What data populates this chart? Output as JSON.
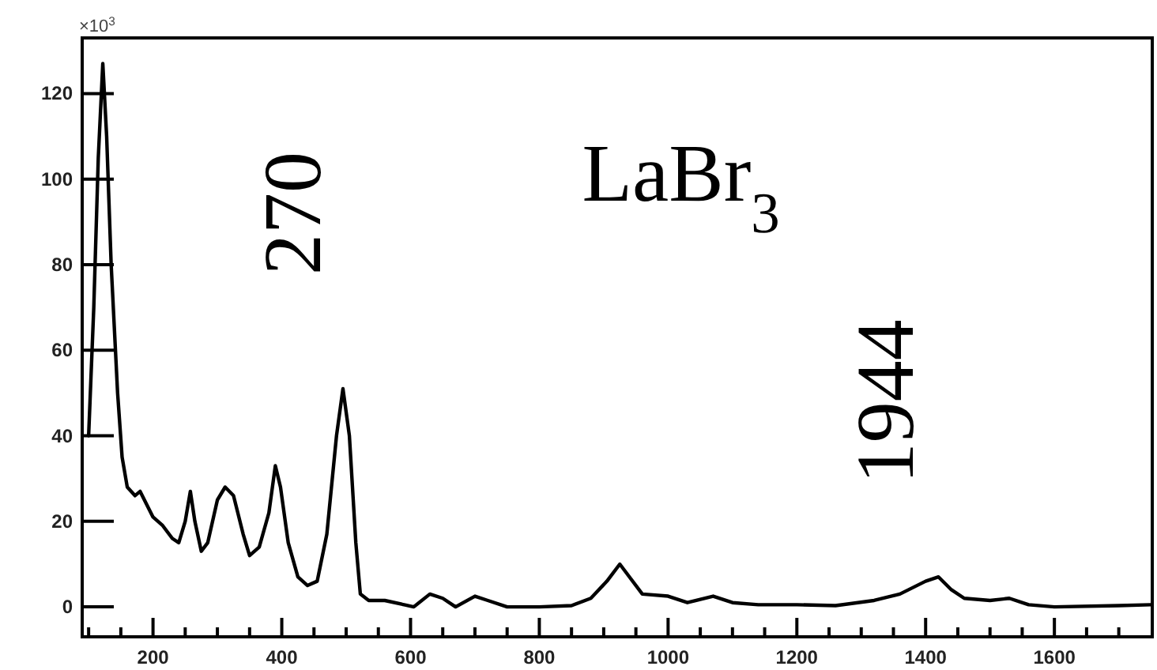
{
  "chart_data": {
    "type": "line",
    "title": "LaBr$_{3}$",
    "ylabel": "×10$^{3}$",
    "annotations": [
      "270",
      "1944"
    ],
    "x": [
      100,
      108,
      115,
      122,
      128,
      135,
      145,
      152,
      160,
      172,
      180,
      190,
      200,
      215,
      230,
      240,
      250,
      258,
      265,
      275,
      285,
      300,
      312,
      325,
      340,
      350,
      365,
      380,
      390,
      398,
      410,
      425,
      440,
      455,
      470,
      485,
      495,
      505,
      515,
      522,
      535,
      560,
      590,
      605,
      630,
      650,
      670,
      700,
      720,
      750,
      800,
      850,
      880,
      905,
      925,
      940,
      960,
      1000,
      1030,
      1070,
      1100,
      1140,
      1200,
      1260,
      1320,
      1360,
      1400,
      1420,
      1440,
      1460,
      1500,
      1530,
      1560,
      1600,
      1700,
      1750
    ],
    "series": [
      {
        "color": "#000000",
        "values": [
          40,
          70,
          105,
          127,
          110,
          80,
          50,
          35,
          28,
          26,
          27,
          24,
          21,
          19,
          16,
          15,
          20,
          27,
          20,
          13,
          15,
          25,
          28,
          26,
          17,
          12,
          14,
          22,
          33,
          28,
          15,
          7,
          5,
          6,
          17,
          40,
          51,
          40,
          15,
          3,
          1.5,
          1.5,
          0.5,
          0,
          3,
          2,
          0,
          2.5,
          1.5,
          0,
          0,
          0.3,
          2,
          6,
          10,
          7,
          3,
          2.5,
          1,
          2.5,
          1,
          0.5,
          0.5,
          0.3,
          1.5,
          3,
          6,
          7,
          4,
          2,
          1.5,
          2,
          0.5,
          0,
          0.3,
          0.5
        ]
      }
    ],
    "xlim": [
      90,
      1752
    ],
    "ylim": [
      -7,
      133
    ],
    "xticks": [
      {
        "value": 100,
        "label": null
      },
      {
        "value": 150,
        "label": null
      },
      200,
      {
        "value": 250,
        "label": null
      },
      {
        "value": 300,
        "label": null
      },
      {
        "value": 350,
        "label": null
      },
      400,
      {
        "value": 450,
        "label": null
      },
      {
        "value": 500,
        "label": null
      },
      {
        "value": 550,
        "label": null
      },
      600,
      {
        "value": 650,
        "label": null
      },
      {
        "value": 700,
        "label": null
      },
      {
        "value": 750,
        "label": null
      },
      800,
      {
        "value": 850,
        "label": null
      },
      {
        "value": 900,
        "label": null
      },
      {
        "value": 950,
        "label": null
      },
      1000,
      {
        "value": 1050,
        "label": null
      },
      {
        "value": 1100,
        "label": null
      },
      {
        "value": 1150,
        "label": null
      },
      1200,
      {
        "value": 1250,
        "label": null
      },
      {
        "value": 1300,
        "label": null
      },
      {
        "value": 1350,
        "label": null
      },
      1400,
      {
        "value": 1450,
        "label": null
      },
      {
        "value": 1500,
        "label": null
      },
      {
        "value": 1550,
        "label": null
      },
      1600,
      {
        "value": 1650,
        "label": null
      },
      {
        "value": 1700,
        "label": null
      }
    ],
    "yticks": [
      0,
      20,
      40,
      60,
      80,
      100,
      120
    ],
    "grid": false,
    "marker": "none",
    "line_style": "solid"
  }
}
